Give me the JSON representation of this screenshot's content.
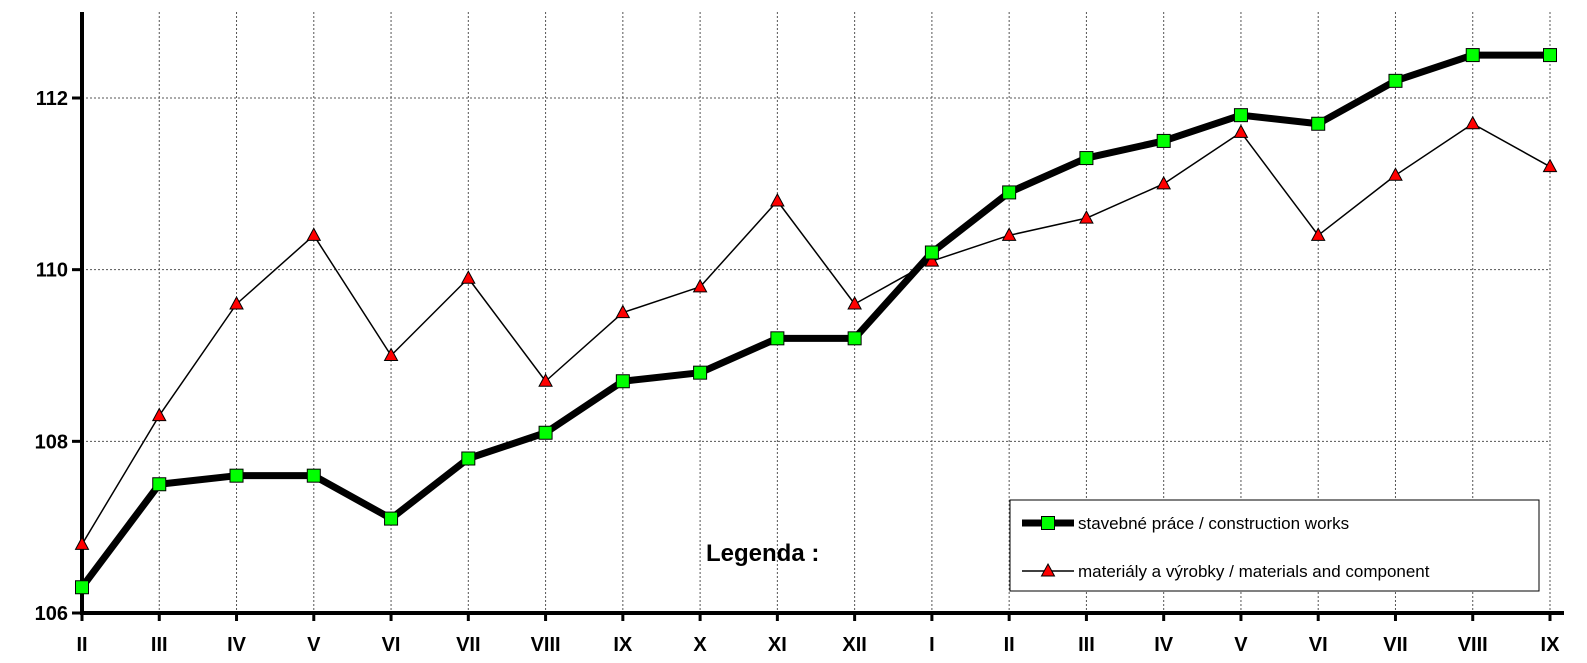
{
  "chart_data": {
    "type": "line",
    "categories": [
      "II",
      "III",
      "IV",
      "V",
      "VI",
      "VII",
      "VIII",
      "IX",
      "X",
      "XI",
      "XII",
      "I",
      "II",
      "III",
      "IV",
      "V",
      "VI",
      "VII",
      "VIII",
      "IX"
    ],
    "ylim": [
      106,
      113
    ],
    "yticks": [
      106,
      108,
      110,
      112
    ],
    "grid": true,
    "legend_title": "Legenda :",
    "legend_position": "bottom-right",
    "series": [
      {
        "name": "stavebné práce / construction works",
        "color": "#000000",
        "marker": "square",
        "marker_color": "#00ff00",
        "values": [
          106.3,
          107.5,
          107.6,
          107.6,
          107.1,
          107.8,
          108.1,
          108.7,
          108.8,
          109.2,
          109.2,
          110.2,
          110.9,
          111.3,
          111.5,
          111.8,
          111.7,
          112.2,
          112.5,
          112.5
        ]
      },
      {
        "name": "materiály a výrobky / materials and component",
        "color": "#000000",
        "marker": "triangle",
        "marker_color": "#ff0000",
        "values": [
          106.8,
          108.3,
          109.6,
          110.4,
          109.0,
          109.9,
          108.7,
          109.5,
          109.8,
          110.8,
          109.6,
          110.1,
          110.4,
          110.6,
          111.0,
          111.6,
          110.4,
          111.1,
          111.7,
          111.2
        ]
      }
    ]
  }
}
